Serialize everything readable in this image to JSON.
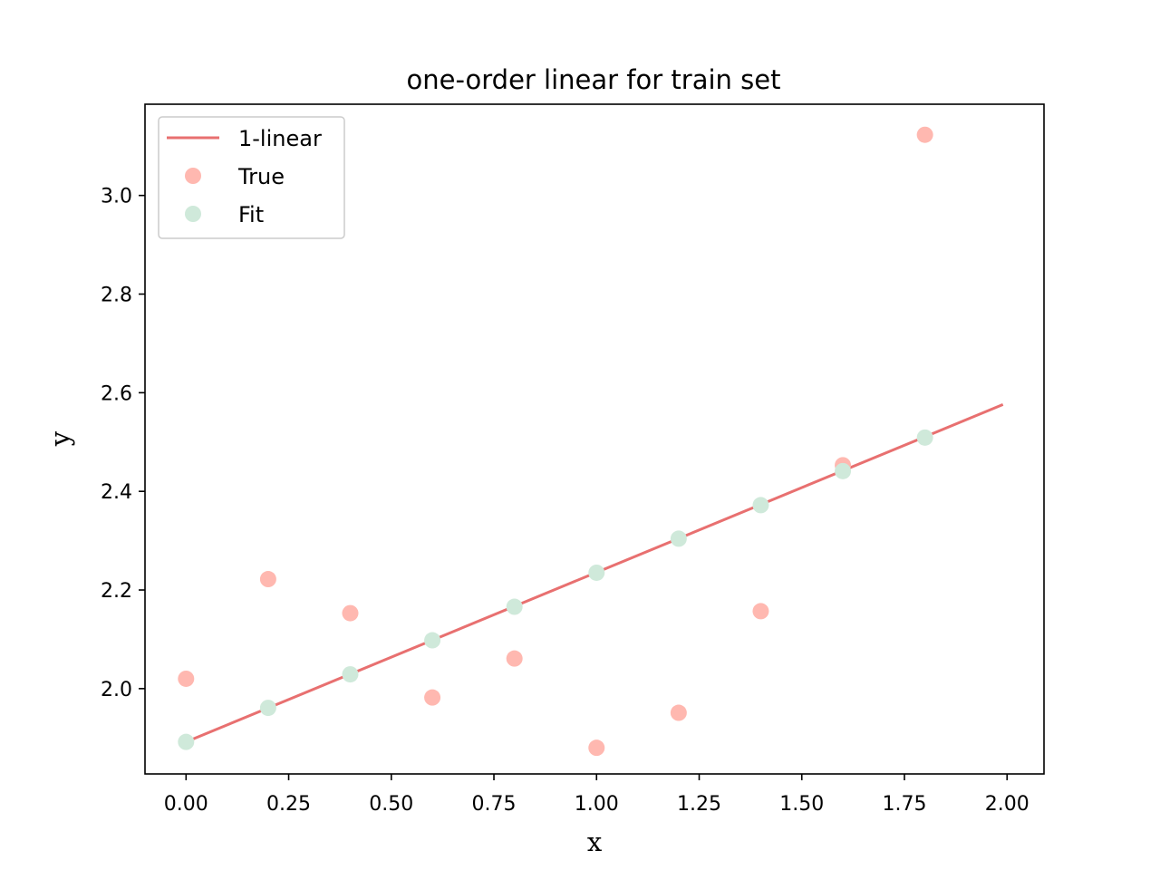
{
  "chart_data": {
    "type": "scatter",
    "title": "one-order linear for train set",
    "xlabel": "x",
    "ylabel": "y",
    "xlim": [
      -0.1,
      2.09
    ],
    "ylim": [
      1.827,
      3.185
    ],
    "xticks": [
      0.0,
      0.25,
      0.5,
      0.75,
      1.0,
      1.25,
      1.5,
      1.75,
      2.0
    ],
    "xtick_labels": [
      "0.00",
      "0.25",
      "0.50",
      "0.75",
      "1.00",
      "1.25",
      "1.50",
      "1.75",
      "2.00"
    ],
    "yticks": [
      2.0,
      2.2,
      2.4,
      2.6,
      2.8,
      3.0
    ],
    "ytick_labels": [
      "2.0",
      "2.2",
      "2.4",
      "2.6",
      "2.8",
      "3.0"
    ],
    "grid": false,
    "legend": "upper-left",
    "series": [
      {
        "name": "1-linear",
        "kind": "line",
        "color": "#e87070",
        "x": [
          0.0,
          1.99
        ],
        "y": [
          1.892,
          2.576
        ]
      },
      {
        "name": "True",
        "kind": "scatter",
        "color": "#ffb8b0",
        "x": [
          0.0,
          0.2,
          0.4,
          0.6,
          0.8,
          1.0,
          1.2,
          1.4,
          1.6,
          1.8
        ],
        "y": [
          2.02,
          2.222,
          2.153,
          1.982,
          2.061,
          1.88,
          1.951,
          2.157,
          2.453,
          3.123
        ]
      },
      {
        "name": "Fit",
        "kind": "scatter",
        "color": "#cfe9da",
        "x": [
          0.0,
          0.2,
          0.4,
          0.6,
          0.8,
          1.0,
          1.2,
          1.4,
          1.6,
          1.8
        ],
        "y": [
          1.892,
          1.961,
          2.029,
          2.098,
          2.166,
          2.235,
          2.304,
          2.372,
          2.441,
          2.509
        ]
      }
    ]
  }
}
